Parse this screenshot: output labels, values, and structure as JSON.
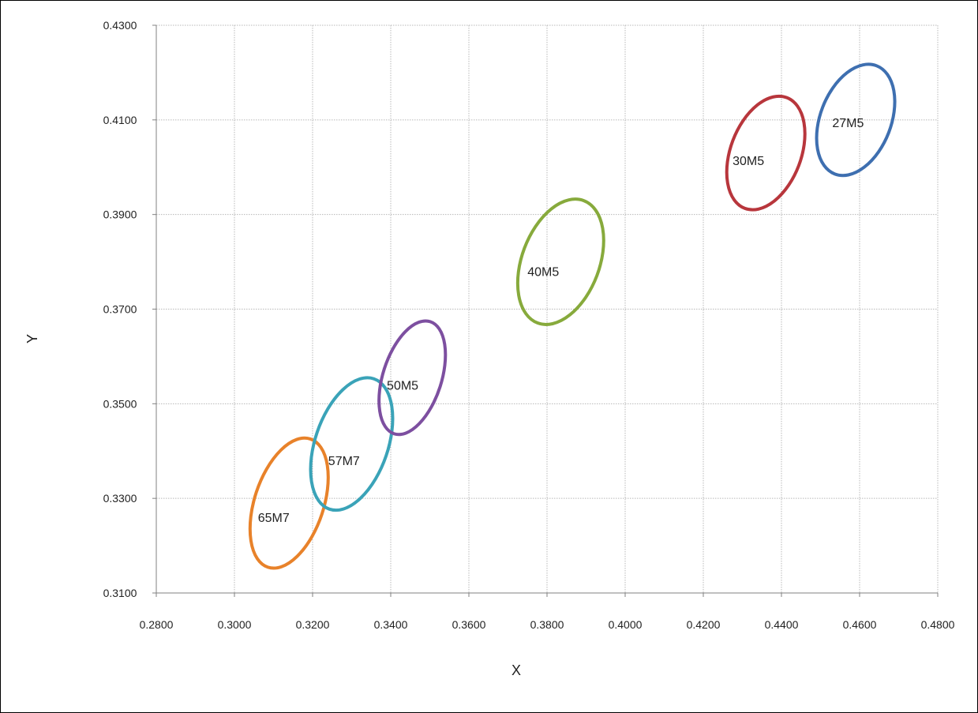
{
  "chart_data": {
    "type": "scatter",
    "title": "",
    "xlabel": "X",
    "ylabel": "Y",
    "xlim": [
      0.28,
      0.48
    ],
    "ylim": [
      0.31,
      0.43
    ],
    "x_ticks": [
      "0.2800",
      "0.3000",
      "0.3200",
      "0.3400",
      "0.3600",
      "0.3800",
      "0.4000",
      "0.4200",
      "0.4400",
      "0.4600",
      "0.4800"
    ],
    "y_ticks": [
      "0.3100",
      "0.3300",
      "0.3500",
      "0.3700",
      "0.3900",
      "0.4100",
      "0.4300"
    ],
    "x_tick_values": [
      0.28,
      0.3,
      0.32,
      0.34,
      0.36,
      0.38,
      0.4,
      0.42,
      0.44,
      0.46,
      0.48
    ],
    "y_tick_values": [
      0.31,
      0.33,
      0.35,
      0.37,
      0.39,
      0.41,
      0.43
    ],
    "grid": true,
    "legend": "none",
    "series": [
      {
        "label": "65M7",
        "color": "#E8822A",
        "center": [
          0.314,
          0.329
        ],
        "extent_x": [
          0.302,
          0.322
        ],
        "extent_y": [
          0.3155,
          0.343
        ],
        "label_at": [
          0.306,
          0.326
        ]
      },
      {
        "label": "57M7",
        "color": "#3AA3B8",
        "center": [
          0.33,
          0.3415
        ],
        "extent_x": [
          0.318,
          0.339
        ],
        "extent_y": [
          0.3275,
          0.3555
        ],
        "label_at": [
          0.324,
          0.338
        ]
      },
      {
        "label": "50M5",
        "color": "#7D4FA0",
        "center": [
          0.3455,
          0.3555
        ],
        "extent_x": [
          0.337,
          0.354
        ],
        "extent_y": [
          0.3435,
          0.3675
        ],
        "label_at": [
          0.339,
          0.354
        ]
      },
      {
        "label": "40M5",
        "color": "#87AA3C",
        "center": [
          0.3835,
          0.38
        ],
        "extent_x": [
          0.372,
          0.394
        ],
        "extent_y": [
          0.367,
          0.3935
        ],
        "label_at": [
          0.375,
          0.378
        ]
      },
      {
        "label": "30M5",
        "color": "#B8363C",
        "center": [
          0.436,
          0.403
        ],
        "extent_x": [
          0.425,
          0.445
        ],
        "extent_y": [
          0.391,
          0.415
        ],
        "label_at": [
          0.4275,
          0.4015
        ]
      },
      {
        "label": "27M5",
        "color": "#3E6FB0",
        "center": [
          0.459,
          0.41
        ],
        "extent_x": [
          0.448,
          0.468
        ],
        "extent_y": [
          0.398,
          0.4215
        ],
        "label_at": [
          0.453,
          0.4095
        ]
      }
    ]
  }
}
